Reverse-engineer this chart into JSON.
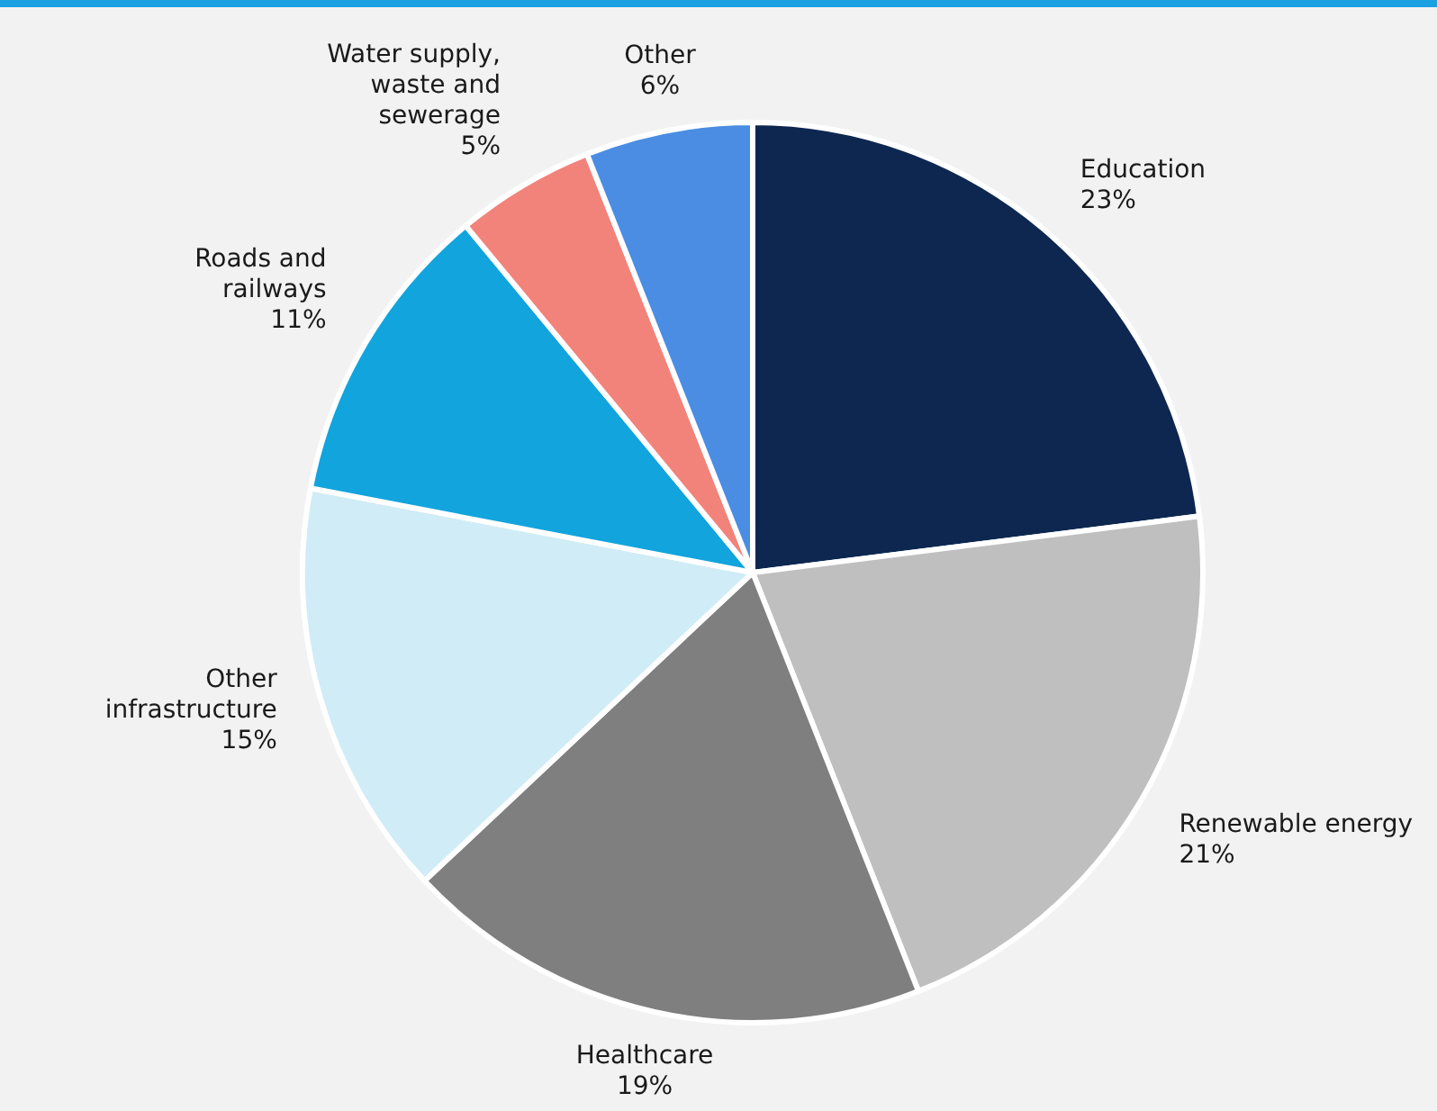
{
  "chart_data": {
    "type": "pie",
    "categories": [
      "Education",
      "Renewable energy",
      "Healthcare",
      "Other infrastructure",
      "Roads and railways",
      "Water supply, waste and sewerage",
      "Other"
    ],
    "values": [
      23,
      21,
      19,
      15,
      11,
      5,
      6
    ],
    "value_labels": [
      "23%",
      "21%",
      "19%",
      "15%",
      "11%",
      "5%",
      "6%"
    ],
    "colors": [
      "#0d2750",
      "#bfbfbf",
      "#7f7f7f",
      "#d0ecf7",
      "#12a4dc",
      "#f2837b",
      "#4a8de3"
    ]
  }
}
